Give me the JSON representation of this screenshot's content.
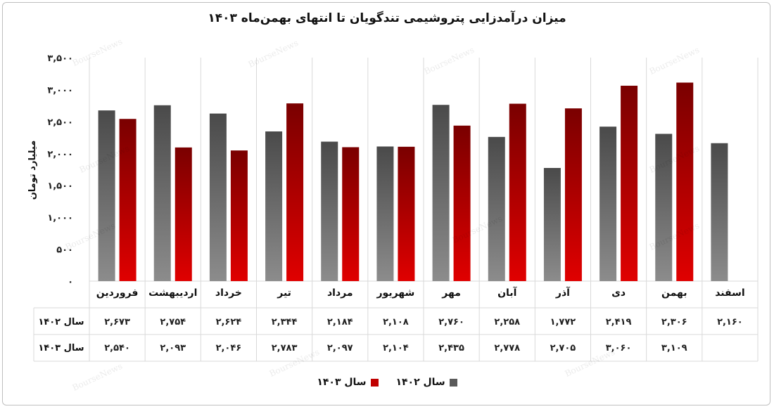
{
  "chart_data": {
    "type": "bar",
    "title": "میزان درآمدزایی پتروشیمی تندگویان تا انتهای بهمن‌ماه ۱۴۰۳",
    "ylabel": "میلیارد تومان",
    "ylim": [
      0,
      3500
    ],
    "yticks": [
      0,
      500,
      1000,
      1500,
      2000,
      2500,
      3000,
      3500
    ],
    "ytick_labels": [
      "۰",
      "۵۰۰",
      "۱,۰۰۰",
      "۱,۵۰۰",
      "۲,۰۰۰",
      "۲,۵۰۰",
      "۳,۰۰۰",
      "۳,۵۰۰"
    ],
    "categories": [
      "فروردین",
      "اردیبهشت",
      "خرداد",
      "تیر",
      "مرداد",
      "شهریور",
      "مهر",
      "آبان",
      "آذر",
      "دی",
      "بهمن",
      "اسفند"
    ],
    "series": [
      {
        "name": "سال ۱۴۰۲",
        "color": "#5a5a5a",
        "values": [
          2673,
          2754,
          2624,
          2344,
          2184,
          2108,
          2760,
          2258,
          1772,
          2419,
          2306,
          2160
        ],
        "labels": [
          "۲,۶۷۳",
          "۲,۷۵۴",
          "۲,۶۲۴",
          "۲,۳۴۴",
          "۲,۱۸۴",
          "۲,۱۰۸",
          "۲,۷۶۰",
          "۲,۲۵۸",
          "۱,۷۷۲",
          "۲,۴۱۹",
          "۲,۳۰۶",
          "۲,۱۶۰"
        ]
      },
      {
        "name": "سال ۱۴۰۳",
        "color": "#c00000",
        "values": [
          2540,
          2093,
          2046,
          2783,
          2097,
          2104,
          2435,
          2778,
          2705,
          3060,
          3109,
          null
        ],
        "labels": [
          "۲,۵۴۰",
          "۲,۰۹۳",
          "۲,۰۴۶",
          "۲,۷۸۳",
          "۲,۰۹۷",
          "۲,۱۰۴",
          "۲,۴۳۵",
          "۲,۷۷۸",
          "۲,۷۰۵",
          "۳,۰۶۰",
          "۳,۱۰۹",
          ""
        ]
      }
    ],
    "grid": "vertical",
    "legend_position": "bottom",
    "data_table": true,
    "watermark": "BourseNews"
  }
}
